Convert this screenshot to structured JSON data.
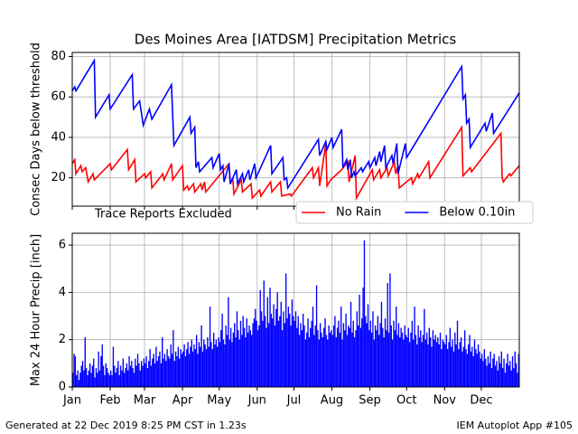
{
  "chart_data": [
    {
      "type": "line",
      "title": "Des Moines Area [IATDSM] Precipitation Metrics",
      "ylabel": "Consec Days below threshold",
      "annotation": "Trace Reports Excluded",
      "legend": "lower right",
      "grid": true,
      "xlim": [
        1,
        366
      ],
      "xticks": [
        1,
        32,
        60,
        91,
        121,
        152,
        182,
        213,
        244,
        274,
        305,
        335
      ],
      "ylim": [
        6,
        82
      ],
      "yticks": [
        20,
        40,
        60,
        80
      ],
      "series": [
        {
          "name": "No Rain",
          "color": "#ff0000",
          "x": [
            1,
            3,
            4,
            8,
            9,
            12,
            14,
            18,
            19,
            32,
            33,
            46,
            47,
            52,
            53,
            60,
            61,
            65,
            66,
            75,
            76,
            82,
            83,
            91,
            92,
            95,
            96,
            100,
            101,
            106,
            107,
            109,
            110,
            129,
            130,
            132,
            133,
            139,
            140,
            147,
            148,
            154,
            155,
            163,
            164,
            171,
            172,
            179,
            180,
            197,
            198,
            202,
            203,
            208,
            209,
            212,
            221,
            226,
            227,
            232,
            233,
            246,
            247,
            252,
            253,
            258,
            259,
            264,
            265,
            267,
            268,
            278,
            279,
            283,
            284,
            292,
            293,
            319,
            320,
            326,
            327,
            351,
            352,
            353,
            358,
            359,
            366
          ],
          "values": [
            27,
            29,
            22,
            26,
            23,
            25,
            18,
            22,
            19,
            27,
            24,
            34,
            24,
            29,
            18,
            22,
            20,
            23,
            15,
            22,
            19,
            27,
            19,
            26,
            14,
            16,
            14,
            17,
            13,
            17,
            14,
            18,
            13,
            27,
            17,
            20,
            12,
            19,
            13,
            17,
            10,
            14,
            11,
            18,
            13,
            18,
            11,
            12,
            11,
            25,
            20,
            25,
            16,
            37,
            16,
            19,
            24,
            28,
            18,
            31,
            10,
            24,
            19,
            24,
            20,
            25,
            21,
            28,
            22,
            26,
            15,
            20,
            17,
            22,
            20,
            28,
            20,
            45,
            21,
            25,
            23,
            42,
            20,
            18,
            22,
            21,
            26
          ]
        },
        {
          "name": "Below 0.10in",
          "color": "#0000ff",
          "x": [
            1,
            3,
            4,
            19,
            20,
            31,
            32,
            50,
            51,
            56,
            59,
            64,
            66,
            82,
            84,
            97,
            98,
            101,
            102,
            104,
            105,
            115,
            116,
            121,
            122,
            124,
            125,
            129,
            130,
            135,
            136,
            140,
            141,
            145,
            146,
            150,
            151,
            163,
            164,
            173,
            174,
            176,
            177,
            202,
            203,
            208,
            209,
            213,
            214,
            221,
            222,
            225,
            226,
            228,
            229,
            231,
            232,
            237,
            238,
            243,
            244,
            248,
            249,
            252,
            253,
            256,
            257,
            262,
            263,
            266,
            267,
            273,
            274,
            319,
            320,
            322,
            323,
            325,
            326,
            338,
            339,
            344,
            345,
            366
          ],
          "values": [
            63,
            65,
            63,
            78,
            50,
            61,
            54,
            71,
            54,
            58,
            46,
            54,
            49,
            66,
            36,
            50,
            42,
            45,
            25,
            28,
            23,
            30,
            25,
            32,
            24,
            26,
            18,
            27,
            17,
            24,
            17,
            22,
            18,
            24,
            19,
            27,
            20,
            36,
            22,
            30,
            19,
            20,
            15,
            39,
            31,
            38,
            34,
            40,
            35,
            44,
            25,
            29,
            24,
            29,
            20,
            23,
            21,
            25,
            23,
            28,
            25,
            30,
            26,
            33,
            28,
            36,
            25,
            31,
            27,
            37,
            22,
            37,
            30,
            75,
            59,
            61,
            47,
            49,
            35,
            47,
            43,
            52,
            42,
            62
          ]
        }
      ]
    },
    {
      "type": "bar",
      "ylabel": "Max 24 Hour Precip [inch]",
      "color": "#0000ff",
      "grid": true,
      "xlim": [
        1,
        366
      ],
      "xticks": [
        {
          "value": 1,
          "label": "Jan"
        },
        {
          "value": 32,
          "label": "Feb"
        },
        {
          "value": 60,
          "label": "Mar"
        },
        {
          "value": 91,
          "label": "Apr"
        },
        {
          "value": 121,
          "label": "May"
        },
        {
          "value": 152,
          "label": "Jun"
        },
        {
          "value": 182,
          "label": "Jul"
        },
        {
          "value": 213,
          "label": "Aug"
        },
        {
          "value": 244,
          "label": "Sep"
        },
        {
          "value": 274,
          "label": "Oct"
        },
        {
          "value": 305,
          "label": "Nov"
        },
        {
          "value": 335,
          "label": "Dec"
        }
      ],
      "ylim": [
        0,
        6.5
      ],
      "yticks": [
        0,
        2,
        4,
        6
      ],
      "x": [
        1,
        2,
        3,
        4,
        5,
        6,
        7,
        8,
        9,
        10,
        11,
        12,
        13,
        14,
        15,
        16,
        17,
        18,
        19,
        20,
        21,
        22,
        23,
        24,
        25,
        26,
        27,
        28,
        29,
        30,
        31,
        32,
        33,
        34,
        35,
        36,
        37,
        38,
        39,
        40,
        41,
        42,
        43,
        44,
        45,
        46,
        47,
        48,
        49,
        50,
        51,
        52,
        53,
        54,
        55,
        56,
        57,
        58,
        59,
        60,
        61,
        62,
        63,
        64,
        65,
        66,
        67,
        68,
        69,
        70,
        71,
        72,
        73,
        74,
        75,
        76,
        77,
        78,
        79,
        80,
        81,
        82,
        83,
        84,
        85,
        86,
        87,
        88,
        89,
        90,
        91,
        92,
        93,
        94,
        95,
        96,
        97,
        98,
        99,
        100,
        101,
        102,
        103,
        104,
        105,
        106,
        107,
        108,
        109,
        110,
        111,
        112,
        113,
        114,
        115,
        116,
        117,
        118,
        119,
        120,
        121,
        122,
        123,
        124,
        125,
        126,
        127,
        128,
        129,
        130,
        131,
        132,
        133,
        134,
        135,
        136,
        137,
        138,
        139,
        140,
        141,
        142,
        143,
        144,
        145,
        146,
        147,
        148,
        149,
        150,
        151,
        152,
        153,
        154,
        155,
        156,
        157,
        158,
        159,
        160,
        161,
        162,
        163,
        164,
        165,
        166,
        167,
        168,
        169,
        170,
        171,
        172,
        173,
        174,
        175,
        176,
        177,
        178,
        179,
        180,
        181,
        182,
        183,
        184,
        185,
        186,
        187,
        188,
        189,
        190,
        191,
        192,
        193,
        194,
        195,
        196,
        197,
        198,
        199,
        200,
        201,
        202,
        203,
        204,
        205,
        206,
        207,
        208,
        209,
        210,
        211,
        212,
        213,
        214,
        215,
        216,
        217,
        218,
        219,
        220,
        221,
        222,
        223,
        224,
        225,
        226,
        227,
        228,
        229,
        230,
        231,
        232,
        233,
        234,
        235,
        236,
        237,
        238,
        239,
        240,
        241,
        242,
        243,
        244,
        245,
        246,
        247,
        248,
        249,
        250,
        251,
        252,
        253,
        254,
        255,
        256,
        257,
        258,
        259,
        260,
        261,
        262,
        263,
        264,
        265,
        266,
        267,
        268,
        269,
        270,
        271,
        272,
        273,
        274,
        275,
        276,
        277,
        278,
        279,
        280,
        281,
        282,
        283,
        284,
        285,
        286,
        287,
        288,
        289,
        290,
        291,
        292,
        293,
        294,
        295,
        296,
        297,
        298,
        299,
        300,
        301,
        302,
        303,
        304,
        305,
        306,
        307,
        308,
        309,
        310,
        311,
        312,
        313,
        314,
        315,
        316,
        317,
        318,
        319,
        320,
        321,
        322,
        323,
        324,
        325,
        326,
        327,
        328,
        329,
        330,
        331,
        332,
        333,
        334,
        335,
        336,
        337,
        338,
        339,
        340,
        341,
        342,
        343,
        344,
        345,
        346,
        347,
        348,
        349,
        350,
        351,
        352,
        353,
        354,
        355,
        356,
        357,
        358,
        359,
        360,
        361,
        362,
        363,
        364,
        365
      ],
      "values": [
        0.6,
        1.4,
        1.3,
        0.5,
        0.7,
        0.3,
        0.6,
        0.9,
        1.1,
        0.7,
        2.1,
        0.8,
        0.5,
        0.7,
        1.0,
        0.6,
        0.9,
        1.2,
        0.4,
        0.8,
        0.6,
        1.5,
        0.7,
        1.3,
        1.8,
        0.9,
        0.5,
        1.0,
        0.8,
        0.6,
        0.5,
        0.7,
        0.5,
        1.7,
        0.9,
        0.6,
        0.8,
        1.1,
        0.5,
        0.9,
        0.7,
        1.2,
        0.6,
        0.8,
        1.0,
        0.7,
        1.3,
        0.9,
        1.1,
        0.8,
        0.6,
        1.2,
        0.9,
        1.4,
        1.0,
        0.7,
        1.1,
        0.9,
        1.2,
        1.0,
        1.3,
        0.8,
        1.1,
        1.6,
        0.9,
        1.2,
        1.4,
        1.0,
        1.7,
        1.1,
        1.3,
        1.5,
        1.0,
        2.1,
        1.2,
        1.4,
        1.1,
        1.6,
        1.3,
        1.2,
        1.8,
        1.4,
        2.4,
        1.1,
        1.5,
        1.3,
        1.7,
        1.2,
        1.6,
        1.4,
        1.5,
        1.8,
        1.3,
        1.6,
        1.9,
        1.4,
        1.7,
        2.0,
        1.5,
        1.8,
        1.6,
        2.2,
        1.4,
        1.9,
        1.7,
        2.6,
        1.5,
        2.0,
        1.8,
        1.6,
        2.1,
        1.7,
        3.4,
        1.9,
        1.6,
        2.3,
        1.8,
        2.0,
        1.7,
        2.1,
        1.9,
        2.4,
        3.1,
        2.0,
        1.8,
        2.6,
        2.2,
        3.8,
        2.0,
        2.5,
        1.9,
        2.3,
        2.7,
        2.1,
        3.2,
        2.4,
        2.0,
        2.8,
        2.2,
        3.0,
        2.5,
        2.1,
        2.9,
        2.3,
        2.6,
        2.4,
        2.2,
        2.7,
        2.9,
        3.3,
        2.8,
        2.4,
        2.6,
        4.1,
        3.2,
        2.8,
        4.5,
        3.0,
        2.5,
        3.8,
        2.7,
        4.2,
        3.1,
        2.9,
        3.5,
        2.6,
        3.3,
        4.0,
        2.8,
        3.0,
        3.6,
        2.4,
        3.2,
        2.7,
        4.8,
        2.9,
        3.4,
        3.1,
        2.6,
        3.7,
        3.0,
        2.8,
        3.2,
        2.5,
        3.0,
        2.2,
        2.7,
        2.4,
        3.1,
        2.6,
        2.0,
        2.3,
        2.9,
        2.1,
        2.5,
        2.8,
        3.4,
        2.2,
        2.6,
        4.3,
        2.4,
        2.0,
        2.7,
        2.3,
        2.1,
        2.5,
        2.9,
        2.2,
        2.0,
        2.6,
        2.3,
        2.4,
        2.2,
        2.6,
        3.0,
        2.1,
        2.5,
        2.8,
        2.3,
        3.4,
        2.0,
        2.7,
        2.4,
        3.1,
        2.2,
        2.6,
        2.5,
        3.6,
        2.3,
        2.8,
        2.1,
        2.4,
        3.2,
        2.6,
        3.9,
        2.5,
        2.9,
        4.2,
        6.2,
        3.0,
        2.7,
        3.5,
        2.4,
        2.8,
        2.3,
        3.2,
        2.0,
        2.6,
        2.4,
        3.0,
        2.2,
        2.7,
        3.6,
        2.5,
        2.1,
        2.9,
        2.4,
        4.4,
        2.3,
        4.8,
        2.6,
        2.0,
        2.8,
        2.4,
        3.4,
        2.2,
        2.7,
        2.1,
        2.5,
        2.3,
        2.0,
        2.6,
        2.2,
        2.1,
        2.5,
        1.9,
        2.3,
        2.8,
        2.0,
        3.4,
        2.2,
        1.8,
        2.6,
        2.1,
        2.4,
        1.9,
        2.2,
        3.3,
        2.0,
        2.3,
        1.8,
        2.5,
        2.1,
        1.7,
        2.4,
        2.0,
        2.2,
        1.9,
        2.1,
        1.8,
        2.3,
        1.6,
        2.0,
        1.9,
        1.8,
        2.2,
        1.6,
        1.9,
        2.5,
        1.7,
        2.0,
        1.5,
        2.3,
        1.8,
        2.8,
        1.6,
        1.9,
        2.1,
        1.5,
        1.7,
        2.4,
        1.6,
        1.4,
        1.8,
        2.2,
        1.5,
        1.7,
        1.3,
        2.0,
        1.6,
        1.4,
        1.8,
        1.5,
        1.2,
        1.4,
        1.1,
        1.6,
        1.2,
        0.9,
        1.3,
        1.0,
        1.5,
        0.8,
        1.2,
        1.4,
        0.9,
        1.1,
        0.7,
        1.3,
        1.0,
        1.5,
        0.8,
        1.2,
        0.6,
        1.0,
        1.4,
        0.9,
        1.1,
        0.7,
        1.3,
        0.8,
        1.5,
        1.0,
        0.6,
        1.4
      ]
    }
  ],
  "footer": {
    "left": "Generated at 22 Dec 2019 8:25 PM CST in 1.23s",
    "right": "IEM Autoplot App #105"
  }
}
